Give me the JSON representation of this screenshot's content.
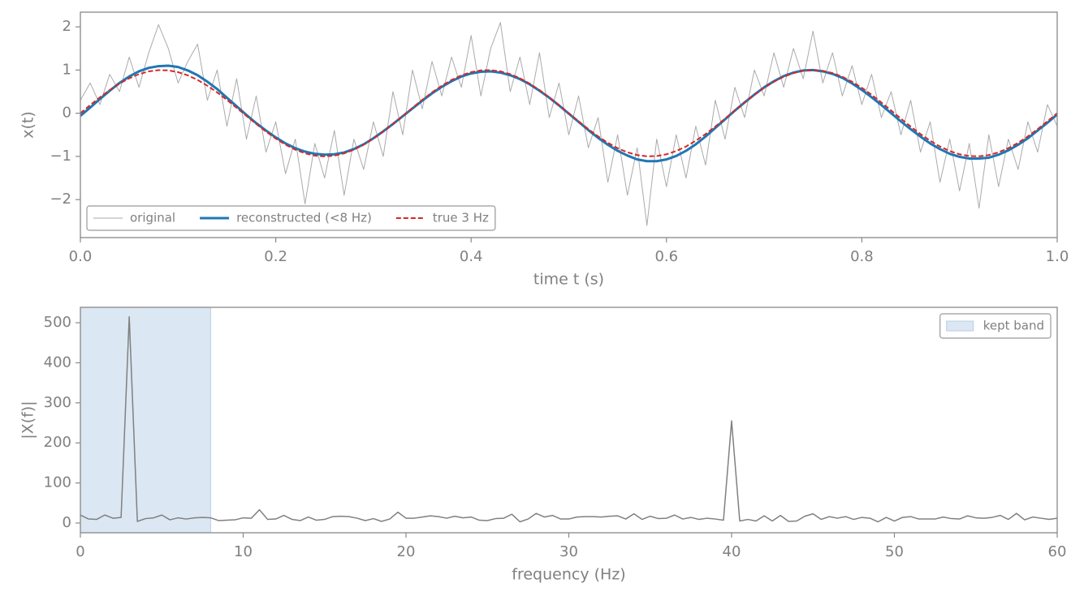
{
  "chart_data": [
    {
      "type": "line",
      "xlabel": "time t (s)",
      "ylabel": "x(t)",
      "xlim": [
        0,
        1
      ],
      "ylim": [
        -2.88,
        2.34
      ],
      "xticks": [
        {
          "value": 0,
          "label": "0.0"
        },
        0.2,
        0.4,
        0.6,
        0.8,
        {
          "value": 1,
          "label": "1.0"
        }
      ],
      "yticks": [
        {
          "value": -2,
          "label": "−2"
        },
        {
          "value": -1,
          "label": "−1"
        },
        0,
        1,
        2
      ],
      "legend": "lower left",
      "x": [
        0,
        0.01,
        0.02,
        0.03,
        0.04,
        0.05,
        0.06,
        0.07,
        0.08,
        0.09,
        0.1,
        0.11,
        0.12,
        0.13,
        0.14,
        0.15,
        0.16,
        0.17,
        0.18,
        0.19,
        0.2,
        0.21,
        0.22,
        0.23,
        0.24,
        0.25,
        0.26,
        0.27,
        0.28,
        0.29,
        0.3,
        0.31,
        0.32,
        0.33,
        0.34,
        0.35,
        0.36,
        0.37,
        0.38,
        0.39,
        0.4,
        0.41,
        0.42,
        0.43,
        0.44,
        0.45,
        0.46,
        0.47,
        0.48,
        0.49,
        0.5,
        0.51,
        0.52,
        0.53,
        0.54,
        0.55,
        0.56,
        0.57,
        0.58,
        0.59,
        0.6,
        0.61,
        0.62,
        0.63,
        0.64,
        0.65,
        0.66,
        0.67,
        0.68,
        0.69,
        0.7,
        0.71,
        0.72,
        0.73,
        0.74,
        0.75,
        0.76,
        0.77,
        0.78,
        0.79,
        0.8,
        0.81,
        0.82,
        0.83,
        0.84,
        0.85,
        0.86,
        0.87,
        0.88,
        0.89,
        0.9,
        0.91,
        0.92,
        0.93,
        0.94,
        0.95,
        0.96,
        0.97,
        0.98,
        0.99,
        1
      ],
      "series": [
        {
          "name": "original",
          "color": "#aaaaaa",
          "linewidth": 1,
          "dashed": false,
          "values": [
            0.3,
            0.7,
            0.2,
            0.9,
            0.5,
            1.3,
            0.6,
            1.4,
            2.05,
            1.5,
            0.7,
            1.2,
            1.6,
            0.3,
            1.0,
            -0.3,
            0.8,
            -0.6,
            0.4,
            -0.9,
            -0.2,
            -1.4,
            -0.6,
            -2.1,
            -0.7,
            -1.5,
            -0.4,
            -1.9,
            -0.6,
            -1.3,
            -0.2,
            -1.0,
            0.5,
            -0.5,
            1.0,
            0.1,
            1.2,
            0.4,
            1.3,
            0.6,
            1.8,
            0.4,
            1.5,
            2.1,
            0.5,
            1.3,
            0.2,
            1.4,
            -0.1,
            0.7,
            -0.5,
            0.4,
            -0.8,
            -0.1,
            -1.6,
            -0.5,
            -1.9,
            -0.8,
            -2.6,
            -0.6,
            -1.7,
            -0.5,
            -1.5,
            -0.3,
            -1.2,
            0.3,
            -0.6,
            0.6,
            -0.1,
            1.0,
            0.4,
            1.4,
            0.6,
            1.5,
            0.8,
            1.9,
            0.7,
            1.4,
            0.4,
            1.1,
            0.2,
            0.9,
            -0.1,
            0.5,
            -0.5,
            0.3,
            -0.9,
            -0.2,
            -1.6,
            -0.6,
            -1.8,
            -0.7,
            -2.2,
            -0.5,
            -1.7,
            -0.6,
            -1.3,
            -0.2,
            -0.9,
            0.2,
            -0.3
          ]
        },
        {
          "name": "reconstructed (<8 Hz)",
          "color": "#1f77b4",
          "linewidth": 3,
          "dashed": false,
          "values": [
            -0.06,
            0.13,
            0.33,
            0.52,
            0.7,
            0.85,
            0.97,
            1.05,
            1.09,
            1.1,
            1.07,
            0.99,
            0.88,
            0.73,
            0.56,
            0.36,
            0.16,
            -0.04,
            -0.23,
            -0.4,
            -0.56,
            -0.7,
            -0.81,
            -0.89,
            -0.94,
            -0.96,
            -0.95,
            -0.91,
            -0.83,
            -0.72,
            -0.58,
            -0.42,
            -0.25,
            -0.07,
            0.11,
            0.29,
            0.46,
            0.61,
            0.74,
            0.85,
            0.92,
            0.96,
            0.97,
            0.94,
            0.88,
            0.79,
            0.67,
            0.52,
            0.36,
            0.18,
            -0.01,
            -0.2,
            -0.39,
            -0.57,
            -0.73,
            -0.87,
            -0.98,
            -1.07,
            -1.11,
            -1.11,
            -1.07,
            -0.99,
            -0.87,
            -0.72,
            -0.54,
            -0.34,
            -0.14,
            0.06,
            0.25,
            0.43,
            0.6,
            0.74,
            0.86,
            0.94,
            0.99,
            1.0,
            0.97,
            0.91,
            0.82,
            0.69,
            0.54,
            0.37,
            0.19,
            0.0,
            -0.19,
            -0.37,
            -0.54,
            -0.7,
            -0.83,
            -0.94,
            -1.01,
            -1.05,
            -1.05,
            -1.03,
            -0.96,
            -0.86,
            -0.73,
            -0.58,
            -0.4,
            -0.22,
            -0.03
          ]
        },
        {
          "name": "true 3 Hz",
          "color": "#d62728",
          "linewidth": 2,
          "dashed": true,
          "values": [
            0,
            0.187,
            0.368,
            0.536,
            0.685,
            0.809,
            0.905,
            0.969,
            0.998,
            0.992,
            0.951,
            0.876,
            0.771,
            0.637,
            0.482,
            0.309,
            0.125,
            -0.063,
            -0.249,
            -0.426,
            -0.588,
            -0.729,
            -0.844,
            -0.93,
            -0.982,
            -1.0,
            -0.982,
            -0.93,
            -0.844,
            -0.729,
            -0.588,
            -0.426,
            -0.249,
            -0.063,
            0.125,
            0.309,
            0.482,
            0.637,
            0.771,
            0.876,
            0.951,
            0.992,
            0.998,
            0.969,
            0.905,
            0.809,
            0.685,
            0.536,
            0.368,
            0.187,
            0,
            -0.187,
            -0.368,
            -0.536,
            -0.685,
            -0.809,
            -0.905,
            -0.969,
            -0.998,
            -0.992,
            -0.951,
            -0.876,
            -0.771,
            -0.637,
            -0.482,
            -0.309,
            -0.125,
            0.063,
            0.249,
            0.426,
            0.588,
            0.729,
            0.844,
            0.93,
            0.982,
            1.0,
            0.982,
            0.93,
            0.844,
            0.729,
            0.588,
            0.426,
            0.249,
            0.063,
            -0.125,
            -0.309,
            -0.482,
            -0.637,
            -0.771,
            -0.876,
            -0.951,
            -0.992,
            -0.998,
            -0.969,
            -0.905,
            -0.809,
            -0.685,
            -0.536,
            -0.368,
            -0.187,
            0
          ]
        }
      ]
    },
    {
      "type": "line",
      "xlabel": "frequency (Hz)",
      "ylabel": "|X(f)|",
      "xlim": [
        0,
        60
      ],
      "ylim": [
        -24.3,
        538.5
      ],
      "xticks": [
        0,
        10,
        20,
        30,
        40,
        50,
        60
      ],
      "yticks": [
        0,
        100,
        200,
        300,
        400,
        500
      ],
      "legend": "upper right",
      "span": {
        "range": [
          0,
          8
        ],
        "color": "#dbe7f2",
        "edge": "#b9cfe5",
        "label": "kept band"
      },
      "x": [
        0,
        0.5,
        1,
        1.5,
        2,
        2.5,
        3,
        3.5,
        4,
        4.5,
        5,
        5.5,
        6,
        6.5,
        7,
        7.5,
        8,
        8.5,
        9,
        9.5,
        10,
        10.5,
        11,
        11.5,
        12,
        12.5,
        13,
        13.5,
        14,
        14.5,
        15,
        15.5,
        16,
        16.5,
        17,
        17.5,
        18,
        18.5,
        19,
        19.5,
        20,
        20.5,
        21,
        21.5,
        22,
        22.5,
        23,
        23.5,
        24,
        24.5,
        25,
        25.5,
        26,
        26.5,
        27,
        27.5,
        28,
        28.5,
        29,
        29.5,
        30,
        30.5,
        31,
        31.5,
        32,
        32.5,
        33,
        33.5,
        34,
        34.5,
        35,
        35.5,
        36,
        36.5,
        37,
        37.5,
        38,
        38.5,
        39,
        39.5,
        40,
        40.5,
        41,
        41.5,
        42,
        42.5,
        43,
        43.5,
        44,
        44.5,
        45,
        45.5,
        46,
        46.5,
        47,
        47.5,
        48,
        48.5,
        49,
        49.5,
        50,
        50.5,
        51,
        51.5,
        52,
        52.5,
        53,
        53.5,
        54,
        54.5,
        55,
        55.5,
        56,
        56.5,
        57,
        57.5,
        58,
        58.5,
        59,
        59.5,
        60
      ],
      "series": [
        {
          "color": "#808080",
          "linewidth": 1.5,
          "dashed": false,
          "values": [
            20,
            10,
            9,
            20,
            12,
            14,
            515,
            4,
            11,
            13,
            20,
            8,
            13,
            10,
            13,
            14,
            13,
            6,
            7,
            8,
            13,
            12,
            33,
            9,
            10,
            19,
            9,
            6,
            15,
            7,
            9,
            16,
            17,
            16,
            12,
            6,
            11,
            4,
            10,
            27,
            12,
            12,
            15,
            18,
            16,
            12,
            17,
            13,
            15,
            7,
            6,
            11,
            12,
            22,
            3,
            10,
            24,
            15,
            19,
            10,
            10,
            15,
            16,
            16,
            15,
            17,
            18,
            10,
            23,
            9,
            17,
            11,
            12,
            20,
            10,
            14,
            9,
            12,
            10,
            7,
            255,
            5,
            9,
            5,
            18,
            5,
            19,
            4,
            5,
            17,
            23,
            9,
            16,
            12,
            16,
            9,
            14,
            12,
            3,
            14,
            5,
            14,
            16,
            10,
            10,
            10,
            15,
            11,
            10,
            18,
            13,
            12,
            14,
            19,
            9,
            24,
            8,
            15,
            12,
            9,
            12
          ]
        }
      ]
    }
  ]
}
